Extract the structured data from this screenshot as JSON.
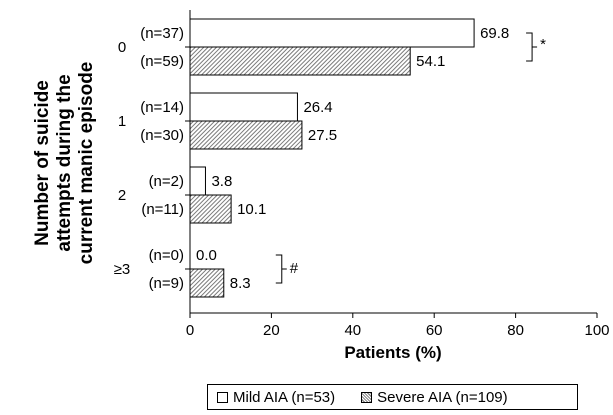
{
  "chart_data": {
    "type": "bar",
    "orientation": "horizontal",
    "ylabel_lines": [
      "Number of suicide",
      "attempts during the",
      "current manic episode"
    ],
    "xlabel": "Patients (%)",
    "xlim": [
      0,
      100
    ],
    "xticks": [
      "0",
      "20",
      "40",
      "60",
      "80",
      "100"
    ],
    "grid": false,
    "legend_position": "bottom",
    "categories": [
      "0",
      "1",
      "2",
      "≥3"
    ],
    "series": [
      {
        "name": "Mild AIA (n=53)",
        "fill": "#ffffff",
        "pattern": "none",
        "values": [
          69.8,
          26.4,
          3.8,
          0.0
        ],
        "labels": [
          "69.8",
          "26.4",
          "3.8",
          "0.0"
        ],
        "n": [
          "(n=37)",
          "(n=14)",
          "(n=2)",
          "(n=0)"
        ]
      },
      {
        "name": "Severe AIA (n=109)",
        "fill": "#8a8a8a",
        "pattern": "diagonal-hatch",
        "values": [
          54.1,
          27.5,
          10.1,
          8.3
        ],
        "labels": [
          "54.1",
          "27.5",
          "10.1",
          "8.3"
        ],
        "n": [
          "(n=59)",
          "(n=30)",
          "(n=11)",
          "(n=9)"
        ]
      }
    ],
    "annotations": [
      {
        "category": "0",
        "symbol": "*"
      },
      {
        "category": "≥3",
        "symbol": "#"
      }
    ]
  }
}
